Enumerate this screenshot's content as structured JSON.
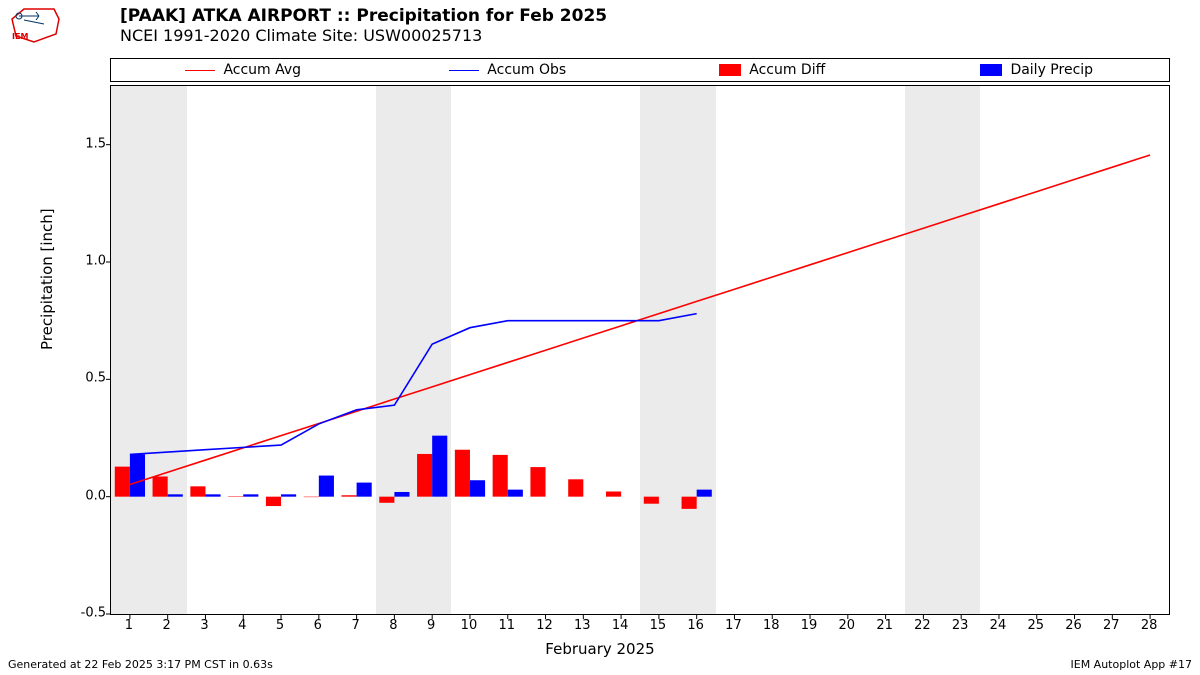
{
  "title_line1": "[PAAK] ATKA AIRPORT :: Precipitation for Feb 2025",
  "title_line2": "NCEI 1991-2020 Climate Site: USW00025713",
  "ylabel": "Precipitation [inch]",
  "xlabel": "February 2025",
  "footer_left": "Generated at 22 Feb 2025 3:17 PM CST in 0.63s",
  "footer_right": "IEM Autoplot App #17",
  "legend": {
    "accum_avg": "Accum Avg",
    "accum_obs": "Accum Obs",
    "accum_diff": "Accum Diff",
    "daily_precip": "Daily Precip"
  },
  "colors": {
    "accum_avg": "#ff0000",
    "accum_obs": "#0000ff",
    "accum_diff": "#ff0000",
    "daily_precip": "#0000ff",
    "shade": "#ebebeb",
    "axis": "#000000",
    "tick": "#000000",
    "background": "#ffffff"
  },
  "chart": {
    "type": "line+bar",
    "x_days": [
      1,
      2,
      3,
      4,
      5,
      6,
      7,
      8,
      9,
      10,
      11,
      12,
      13,
      14,
      15,
      16,
      17,
      18,
      19,
      20,
      21,
      22,
      23,
      24,
      25,
      26,
      27,
      28
    ],
    "xlim": [
      0.5,
      28.5
    ],
    "ylim": [
      -0.5,
      1.75
    ],
    "yticks": [
      -0.5,
      0.0,
      0.5,
      1.0,
      1.5
    ],
    "bar_width": 0.4,
    "line_width": 1.6,
    "tick_fontsize": 13,
    "label_fontsize": 15,
    "title_fontsize": 17,
    "weekend_shade_ranges": [
      [
        0.5,
        2.5
      ],
      [
        7.5,
        9.5
      ],
      [
        14.5,
        16.5
      ],
      [
        21.5,
        23.5
      ]
    ],
    "accum_avg": [
      0.052,
      0.104,
      0.156,
      0.208,
      0.26,
      0.312,
      0.364,
      0.416,
      0.468,
      0.52,
      0.572,
      0.624,
      0.676,
      0.728,
      0.78,
      0.832,
      0.884,
      0.936,
      0.988,
      1.04,
      1.092,
      1.144,
      1.196,
      1.248,
      1.3,
      1.352,
      1.404,
      1.456
    ],
    "accum_obs": [
      0.18,
      0.19,
      0.2,
      0.21,
      0.22,
      0.31,
      0.37,
      0.39,
      0.65,
      0.72,
      0.75,
      0.75,
      0.75,
      0.75,
      0.75,
      0.78
    ],
    "daily_precip": [
      0.18,
      0.01,
      0.01,
      0.01,
      0.01,
      0.09,
      0.06,
      0.02,
      0.26,
      0.07,
      0.03,
      0.0,
      0.0,
      0.0,
      0.0,
      0.03
    ],
    "accum_diff": [
      0.128,
      0.086,
      0.044,
      0.002,
      -0.04,
      -0.002,
      0.006,
      -0.026,
      0.182,
      0.2,
      0.178,
      0.126,
      0.074,
      0.022,
      -0.03,
      -0.052
    ]
  }
}
